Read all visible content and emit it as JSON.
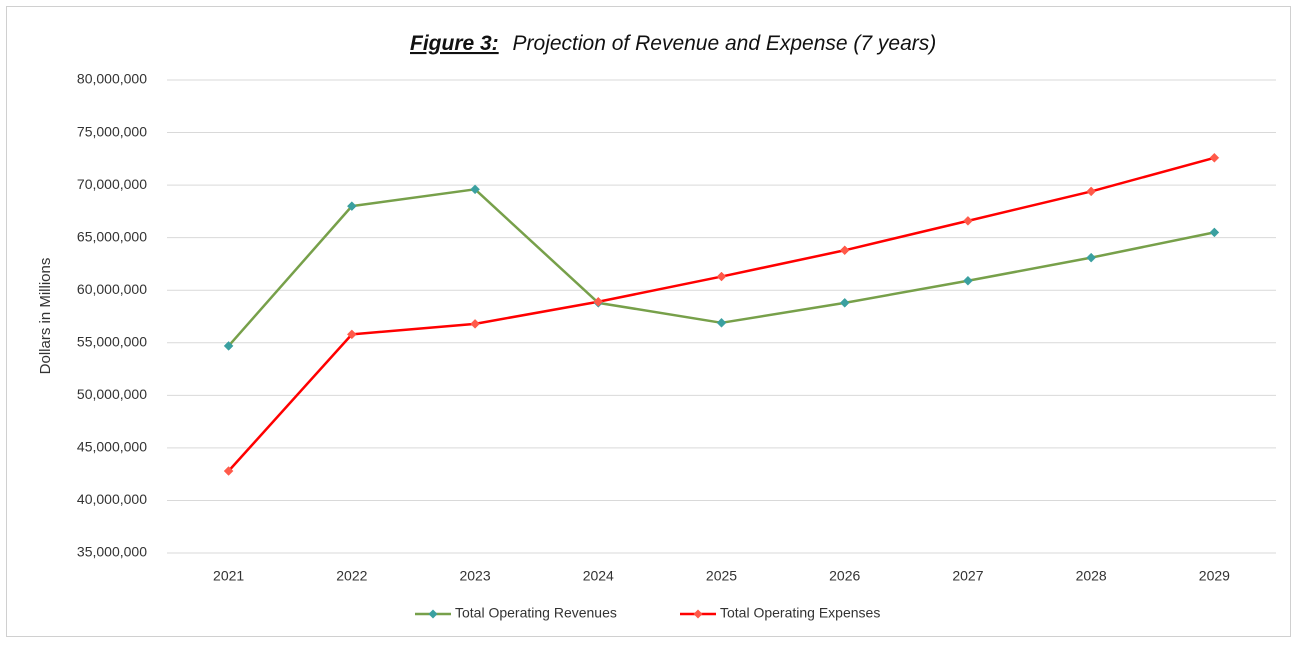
{
  "chart_data": {
    "type": "line",
    "title_label": "Figure 3:",
    "title": "Projection of Revenue and Expense (7 years)",
    "ylabel": "Dollars in Millions",
    "categories": [
      "2021",
      "2022",
      "2023",
      "2024",
      "2025",
      "2026",
      "2027",
      "2028",
      "2029"
    ],
    "series": [
      {
        "name": "Total Operating Revenues",
        "color": "#77a04a",
        "marker_color": "#3aa0a0",
        "values": [
          54700000,
          68000000,
          69600000,
          58800000,
          56900000,
          58800000,
          60900000,
          63100000,
          65500000
        ]
      },
      {
        "name": "Total Operating Expenses",
        "color": "#ff0000",
        "marker_color": "#ff5a4a",
        "values": [
          42800000,
          55800000,
          56800000,
          58900000,
          61300000,
          63800000,
          66600000,
          69400000,
          72600000
        ]
      }
    ],
    "ylim": [
      35000000,
      80000000
    ],
    "yticks": [
      {
        "value": 35000000,
        "label": "35,000,000"
      },
      {
        "value": 40000000,
        "label": "40,000,000"
      },
      {
        "value": 45000000,
        "label": "45,000,000"
      },
      {
        "value": 50000000,
        "label": "50,000,000"
      },
      {
        "value": 55000000,
        "label": "55,000,000"
      },
      {
        "value": 60000000,
        "label": "60,000,000"
      },
      {
        "value": 65000000,
        "label": "65,000,000"
      },
      {
        "value": 70000000,
        "label": "70,000,000"
      },
      {
        "value": 75000000,
        "label": "75,000,000"
      },
      {
        "value": 80000000,
        "label": "80,000,000"
      }
    ],
    "grid": true,
    "legend": "bottom"
  }
}
